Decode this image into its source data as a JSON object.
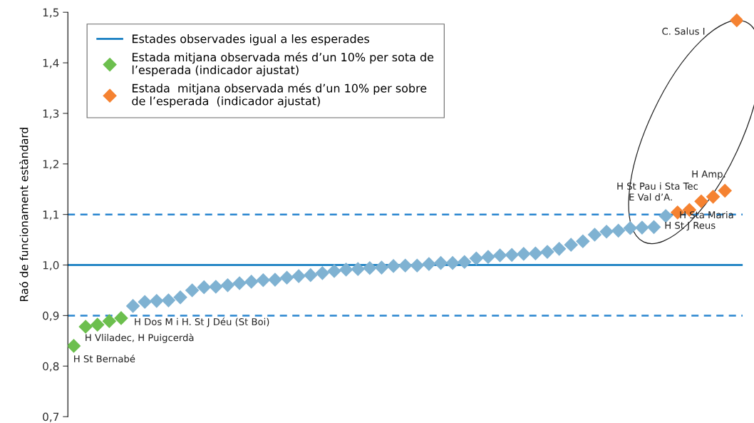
{
  "chart_data": {
    "type": "scatter",
    "ylabel": "Raó de funcionament estàndard",
    "categories": [
      null,
      null,
      null,
      null,
      null,
      null,
      null,
      null,
      null,
      null,
      null,
      null,
      null,
      null,
      null,
      null,
      null,
      null,
      null,
      null,
      null,
      null,
      null,
      null,
      null,
      null,
      null,
      null,
      null,
      null,
      null,
      null,
      null,
      null,
      null,
      null,
      null,
      null,
      null,
      null,
      null,
      null,
      null,
      null,
      null,
      null,
      null,
      null,
      null,
      null,
      null,
      null,
      null,
      null,
      null,
      null,
      null
    ],
    "series": [
      {
        "name": "Estada mitjana observada més d’un 10% per sota de l’esperada (indicador ajustat)",
        "color": "#6cbf4e",
        "values": [
          0.84,
          0.878,
          0.882,
          0.889,
          0.895,
          null,
          null,
          null,
          null,
          null,
          null,
          null,
          null,
          null,
          null,
          null,
          null,
          null,
          null,
          null,
          null,
          null,
          null,
          null,
          null,
          null,
          null,
          null,
          null,
          null,
          null,
          null,
          null,
          null,
          null,
          null,
          null,
          null,
          null,
          null,
          null,
          null,
          null,
          null,
          null,
          null,
          null,
          null,
          null,
          null,
          null,
          null,
          null,
          null,
          null,
          null,
          null
        ]
      },
      {
        "color": "#7fb2d2",
        "values": [
          null,
          null,
          null,
          null,
          null,
          0.919,
          0.927,
          0.929,
          0.93,
          0.936,
          0.95,
          0.956,
          0.957,
          0.96,
          0.964,
          0.967,
          0.97,
          0.971,
          0.975,
          0.978,
          0.98,
          0.984,
          0.988,
          0.991,
          0.992,
          0.994,
          0.995,
          0.998,
          0.999,
          0.999,
          1.002,
          1.004,
          1.004,
          1.006,
          1.013,
          1.016,
          1.019,
          1.02,
          1.022,
          1.023,
          1.026,
          1.032,
          1.04,
          1.047,
          1.06,
          1.066,
          1.068,
          1.073,
          1.074,
          1.075,
          1.097,
          null,
          null,
          null,
          null,
          null,
          null
        ]
      },
      {
        "name": "Estada  mitjana observada més d’un 10% per sobre de l’esperada  (indicador ajustat)",
        "color": "#f58231",
        "values": [
          null,
          null,
          null,
          null,
          null,
          null,
          null,
          null,
          null,
          null,
          null,
          null,
          null,
          null,
          null,
          null,
          null,
          null,
          null,
          null,
          null,
          null,
          null,
          null,
          null,
          null,
          null,
          null,
          null,
          null,
          null,
          null,
          null,
          null,
          null,
          null,
          null,
          null,
          null,
          null,
          null,
          null,
          null,
          null,
          null,
          null,
          null,
          null,
          null,
          null,
          null,
          1.104,
          1.109,
          1.126,
          1.135,
          1.147,
          1.484
        ]
      }
    ],
    "ref_lines": [
      {
        "axis": "y",
        "value": 1.0,
        "label": "Estades observades igual a les esperades",
        "color": "#0072bc",
        "line_style": "solid"
      },
      {
        "axis": "y",
        "value": 1.1,
        "color": "#2a86d0",
        "line_style": "dashed"
      },
      {
        "axis": "y",
        "value": 0.9,
        "color": "#2a86d0",
        "line_style": "dashed"
      }
    ],
    "annotations": [
      "H St Bernabé",
      "H Vliladec, H Puigcerdà",
      "H Dos M i H. St J Déu (St Boi)",
      "H St Pau i Sta Tec",
      "E Val d’A.",
      "H Sta Maria",
      "H St J Reus",
      "H Amp.",
      "C. Salus I"
    ],
    "ylim": [
      0.7,
      1.5
    ],
    "yticks": [
      {
        "value": 0.7,
        "label": "0,7"
      },
      {
        "value": 0.8,
        "label": "0,8"
      },
      {
        "value": 0.9,
        "label": "0,9"
      },
      {
        "value": 1.0,
        "label": "1,0"
      },
      {
        "value": 1.1,
        "label": "1,1"
      },
      {
        "value": 1.2,
        "label": "1,2"
      },
      {
        "value": 1.3,
        "label": "1,3"
      },
      {
        "value": 1.4,
        "label": "1,4"
      },
      {
        "value": 1.5,
        "label": "1,5"
      }
    ],
    "marker": "diamond",
    "grid": false,
    "legend": "top left",
    "tick_labels": "y"
  }
}
